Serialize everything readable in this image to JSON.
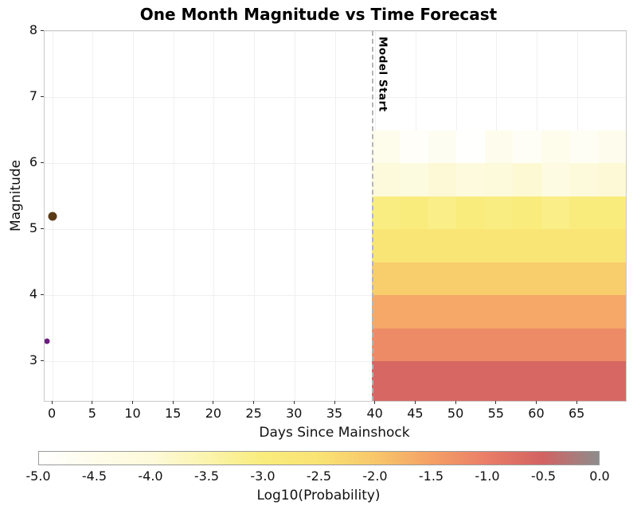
{
  "title": "One Month Magnitude vs Time Forecast",
  "x_axis": {
    "label": "Days Since Mainshock",
    "ticks": [
      0,
      5,
      10,
      15,
      20,
      25,
      30,
      35,
      40,
      45,
      50,
      55,
      60,
      65
    ],
    "range": [
      -1,
      71
    ]
  },
  "y_axis": {
    "label": "Magnitude",
    "ticks": [
      3,
      4,
      5,
      6,
      7,
      8
    ],
    "range": [
      2.4,
      8
    ]
  },
  "annotation": {
    "label": "Model Start",
    "x": 39.5,
    "line_color": "#b5b5b5"
  },
  "colorbar": {
    "label": "Log10(Probability)",
    "range": [
      -5,
      0
    ],
    "tick_values": [
      -5,
      -4.5,
      -4,
      -3.5,
      -3,
      -2.5,
      -2,
      -1.5,
      -1,
      -0.5,
      0
    ],
    "tick_labels": [
      "-5.0",
      "-4.5",
      "-4.0",
      "-3.5",
      "-3.0",
      "-2.5",
      "-2.0",
      "-1.5",
      "-1.0",
      "-0.5",
      "0.0"
    ],
    "stops": [
      {
        "v": -5.0,
        "c": "#ffffff"
      },
      {
        "v": -4.5,
        "c": "#fefce9"
      },
      {
        "v": -4.0,
        "c": "#fdfadb"
      },
      {
        "v": -3.5,
        "c": "#fbf4ad"
      },
      {
        "v": -3.0,
        "c": "#f9ec7d"
      },
      {
        "v": -2.5,
        "c": "#f9e374"
      },
      {
        "v": -2.0,
        "c": "#f8c76a"
      },
      {
        "v": -1.5,
        "c": "#f4a066"
      },
      {
        "v": -1.0,
        "c": "#ea7d68"
      },
      {
        "v": -0.5,
        "c": "#d26262"
      },
      {
        "v": 0.0,
        "c": "#8d8d8d"
      }
    ]
  },
  "chart_data": {
    "type": "heatmap",
    "title": "One Month Magnitude vs Time Forecast",
    "xlabel": "Days Since Mainshock",
    "ylabel": "Magnitude",
    "value_label": "Log10(Probability)",
    "value_range": [
      -5,
      0
    ],
    "x_bin_edges": [
      39.5,
      43,
      46.5,
      50,
      53.5,
      57,
      60.5,
      64,
      67.5,
      71
    ],
    "rows": [
      {
        "mag_min": 2.4,
        "mag_max": 3.0,
        "values": [
          -0.6,
          -0.6,
          -0.6,
          -0.6,
          -0.6,
          -0.6,
          -0.6,
          -0.6,
          -0.6
        ]
      },
      {
        "mag_min": 3.0,
        "mag_max": 3.5,
        "values": [
          -1.2,
          -1.2,
          -1.2,
          -1.2,
          -1.2,
          -1.2,
          -1.2,
          -1.2,
          -1.2
        ]
      },
      {
        "mag_min": 3.5,
        "mag_max": 4.0,
        "values": [
          -1.6,
          -1.6,
          -1.6,
          -1.6,
          -1.6,
          -1.6,
          -1.6,
          -1.6,
          -1.6
        ]
      },
      {
        "mag_min": 4.0,
        "mag_max": 4.5,
        "values": [
          -2.1,
          -2.1,
          -2.1,
          -2.1,
          -2.1,
          -2.1,
          -2.1,
          -2.1,
          -2.1
        ]
      },
      {
        "mag_min": 4.5,
        "mag_max": 5.0,
        "values": [
          -2.6,
          -2.6,
          -2.6,
          -2.6,
          -2.6,
          -2.6,
          -2.6,
          -2.6,
          -2.6
        ]
      },
      {
        "mag_min": 5.0,
        "mag_max": 5.5,
        "values": [
          -3.05,
          -3.0,
          -3.1,
          -3.0,
          -3.05,
          -3.0,
          -3.1,
          -3.0,
          -3.0
        ]
      },
      {
        "mag_min": 5.5,
        "mag_max": 6.0,
        "values": [
          -4.0,
          -4.15,
          -3.95,
          -4.1,
          -4.0,
          -3.9,
          -4.2,
          -4.05,
          -3.95
        ]
      },
      {
        "mag_min": 6.0,
        "mag_max": 6.5,
        "values": [
          -4.55,
          -4.85,
          -4.7,
          -4.95,
          -4.6,
          -4.8,
          -4.55,
          -4.75,
          -4.6
        ]
      }
    ],
    "scatter_points": [
      {
        "x": 0,
        "y": 5.2,
        "color": "#5a3a16",
        "diameter": 11
      },
      {
        "x": -0.7,
        "y": 3.3,
        "color": "#6d1c80",
        "diameter": 7
      }
    ]
  }
}
